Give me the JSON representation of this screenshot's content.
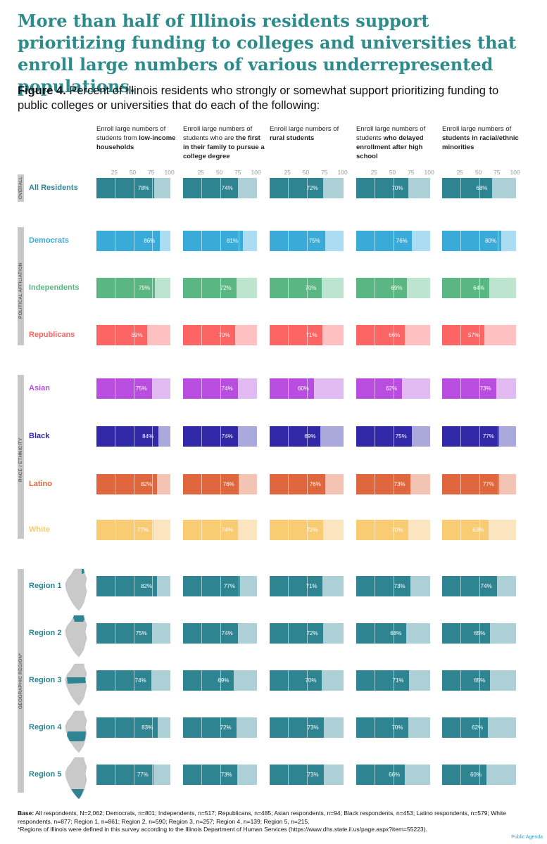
{
  "title": "More than half of Illinois residents support prioritizing funding to colleges and universities that enroll large numbers of various underrepresented populations.",
  "subtitle": {
    "figure_label": "Figure 4.",
    "text": " Percent of Illinois residents who strongly or somewhat support prioritizing funding to public colleges or universities that do each of the following:"
  },
  "columns": [
    {
      "plain": "Enroll large numbers of students from ",
      "bold": "low-income households"
    },
    {
      "plain": "Enroll large numbers of students who are ",
      "bold": "the first in their family to pursue a college degree"
    },
    {
      "plain": "Enroll large numbers of ",
      "bold": "rural students"
    },
    {
      "plain": "Enroll large numbers of students ",
      "bold": "who delayed enrollment after high school"
    },
    {
      "plain": "Enroll large numbers of ",
      "bold": "students in racial/ethnic minorities"
    }
  ],
  "axis_ticks": [
    "25",
    "50",
    "75",
    "100"
  ],
  "groups": [
    {
      "label": "OVERALL",
      "rows": [
        "All Residents"
      ]
    },
    {
      "label": "POLITICAL AFFILIATION",
      "rows": [
        "Democrats",
        "Independents",
        "Republicans"
      ]
    },
    {
      "label": "RACE / ETHNICITY",
      "rows": [
        "Asian",
        "Black",
        "Latino",
        "White"
      ]
    },
    {
      "label": "GEOGRAPHIC REGION*",
      "rows": [
        "Region 1",
        "Region 2",
        "Region 3",
        "Region 4",
        "Region 5"
      ]
    }
  ],
  "chart_data": {
    "type": "bar",
    "orientation": "horizontal",
    "xlim": [
      0,
      100
    ],
    "unit": "%",
    "categories": [
      "All Residents",
      "Democrats",
      "Independents",
      "Republicans",
      "Asian",
      "Black",
      "Latino",
      "White",
      "Region 1",
      "Region 2",
      "Region 3",
      "Region 4",
      "Region 5"
    ],
    "series": [
      {
        "name": "low-income households",
        "values": [
          78,
          86,
          79,
          69,
          75,
          84,
          82,
          77,
          82,
          75,
          74,
          83,
          77
        ]
      },
      {
        "name": "first in family to pursue a college degree",
        "values": [
          74,
          81,
          72,
          70,
          74,
          74,
          76,
          74,
          77,
          74,
          69,
          72,
          73
        ]
      },
      {
        "name": "rural students",
        "values": [
          72,
          75,
          70,
          71,
          60,
          69,
          76,
          72,
          71,
          72,
          70,
          73,
          73
        ]
      },
      {
        "name": "delayed enrollment after high school",
        "values": [
          70,
          76,
          69,
          66,
          62,
          75,
          73,
          70,
          73,
          68,
          71,
          70,
          66
        ]
      },
      {
        "name": "students in racial/ethnic minorities",
        "values": [
          68,
          80,
          64,
          57,
          73,
          77,
          77,
          63,
          74,
          65,
          65,
          62,
          60
        ]
      }
    ],
    "row_colors": {
      "All Residents": [
        "#2e8591",
        "#acd0d6"
      ],
      "Democrats": [
        "#3aabd9",
        "#acdcf1"
      ],
      "Independents": [
        "#5ab784",
        "#bde4ce"
      ],
      "Republicans": [
        "#fd6565",
        "#fec0c0"
      ],
      "Asian": [
        "#b84ddf",
        "#e2baf2"
      ],
      "Black": [
        "#3128a8",
        "#aba8dc"
      ],
      "Latino": [
        "#e0673d",
        "#f3c3b3"
      ],
      "White": [
        "#f9cc73",
        "#fbe5c0"
      ],
      "Region 1": [
        "#2e8591",
        "#acd0d6"
      ],
      "Region 2": [
        "#2e8591",
        "#acd0d6"
      ],
      "Region 3": [
        "#2e8591",
        "#acd0d6"
      ],
      "Region 4": [
        "#2e8591",
        "#acd0d6"
      ],
      "Region 5": [
        "#2e8591",
        "#acd0d6"
      ]
    },
    "label_colors": {
      "All Residents": "#2e8591",
      "Democrats": "#3aabd9",
      "Independents": "#5ab784",
      "Republicans": "#fd6565",
      "Asian": "#b84ddf",
      "Black": "#3128a8",
      "Latino": "#e0673d",
      "White": "#f9cc73",
      "Region 1": "#2e8591",
      "Region 2": "#2e8591",
      "Region 3": "#2e8591",
      "Region 4": "#2e8591",
      "Region 5": "#2e8591"
    }
  },
  "base": {
    "label": "Base:",
    "text": " All respondents, N=2,062; Democrats, n=801; Independents, n=517; Republicans, n=485; Asian respondents, n=94; Black respondents, n=453; Latino respondents, n=579; White respondents, n=877; Region 1, n=861; Region 2, n=590; Region 3, n=257; Region 4, n=139; Region 5, n=215.",
    "footnote": "*Regions of Illinois were defined in this survey according to the Illinois Department of Human Services (https://www.dhs.state.il.us/page.aspx?item=55223)."
  },
  "credit": "Public Agenda"
}
